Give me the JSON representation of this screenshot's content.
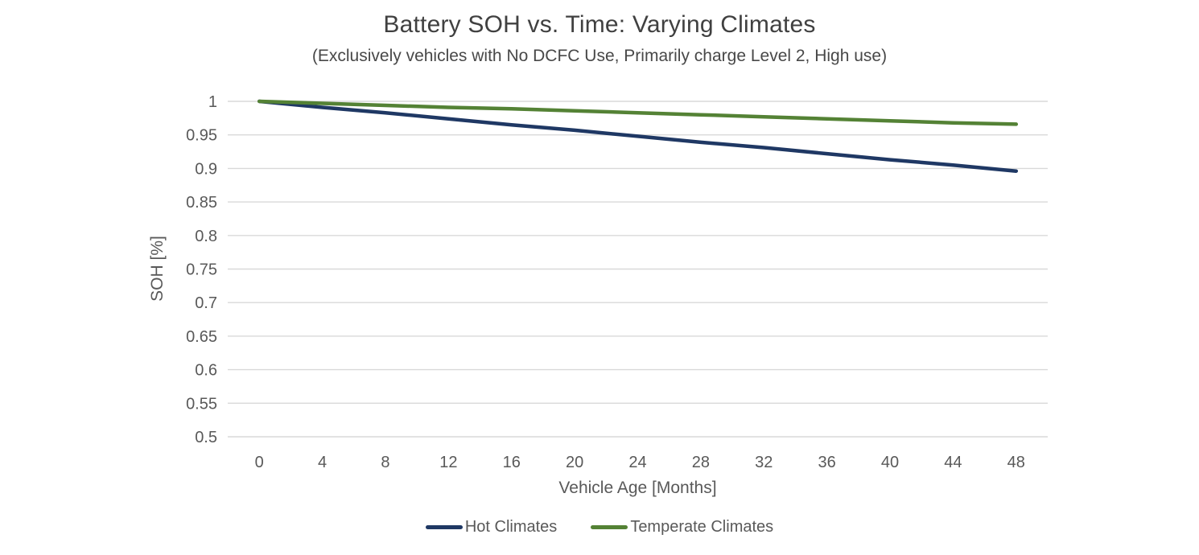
{
  "chart_data": {
    "type": "line",
    "title": "Battery SOH vs. Time: Varying Climates",
    "subtitle": "(Exclusively vehicles with No DCFC Use, Primarily charge Level 2, High use)",
    "xlabel": "Vehicle Age [Months]",
    "ylabel": "SOH [%]",
    "x": [
      0,
      4,
      8,
      12,
      16,
      20,
      24,
      28,
      32,
      36,
      40,
      44,
      48
    ],
    "series": [
      {
        "name": "Hot Climates",
        "color": "#1f3864",
        "values": [
          1.0,
          0.991,
          0.983,
          0.974,
          0.965,
          0.957,
          0.948,
          0.939,
          0.931,
          0.922,
          0.913,
          0.905,
          0.896
        ]
      },
      {
        "name": "Temperate Climates",
        "color": "#548235",
        "values": [
          1.0,
          0.997,
          0.994,
          0.991,
          0.989,
          0.986,
          0.983,
          0.98,
          0.977,
          0.974,
          0.971,
          0.968,
          0.966
        ]
      }
    ],
    "ylim": [
      0.5,
      1.0
    ],
    "ytick_values": [
      1.0,
      0.95,
      0.9,
      0.85,
      0.8,
      0.75,
      0.7,
      0.65,
      0.6,
      0.55,
      0.5
    ],
    "ytick_labels": [
      "1",
      "0.95",
      "0.9",
      "0.85",
      "0.8",
      "0.75",
      "0.7",
      "0.65",
      "0.6",
      "0.55",
      "0.5"
    ],
    "xtick_labels": [
      "0",
      "4",
      "8",
      "12",
      "16",
      "20",
      "24",
      "28",
      "32",
      "36",
      "40",
      "44",
      "48"
    ],
    "grid": "horizontal",
    "legend_position": "bottom",
    "colors": {
      "grid": "#d9d9d9",
      "tick_text": "#595959",
      "title_text": "#404040",
      "background": "#ffffff"
    }
  }
}
